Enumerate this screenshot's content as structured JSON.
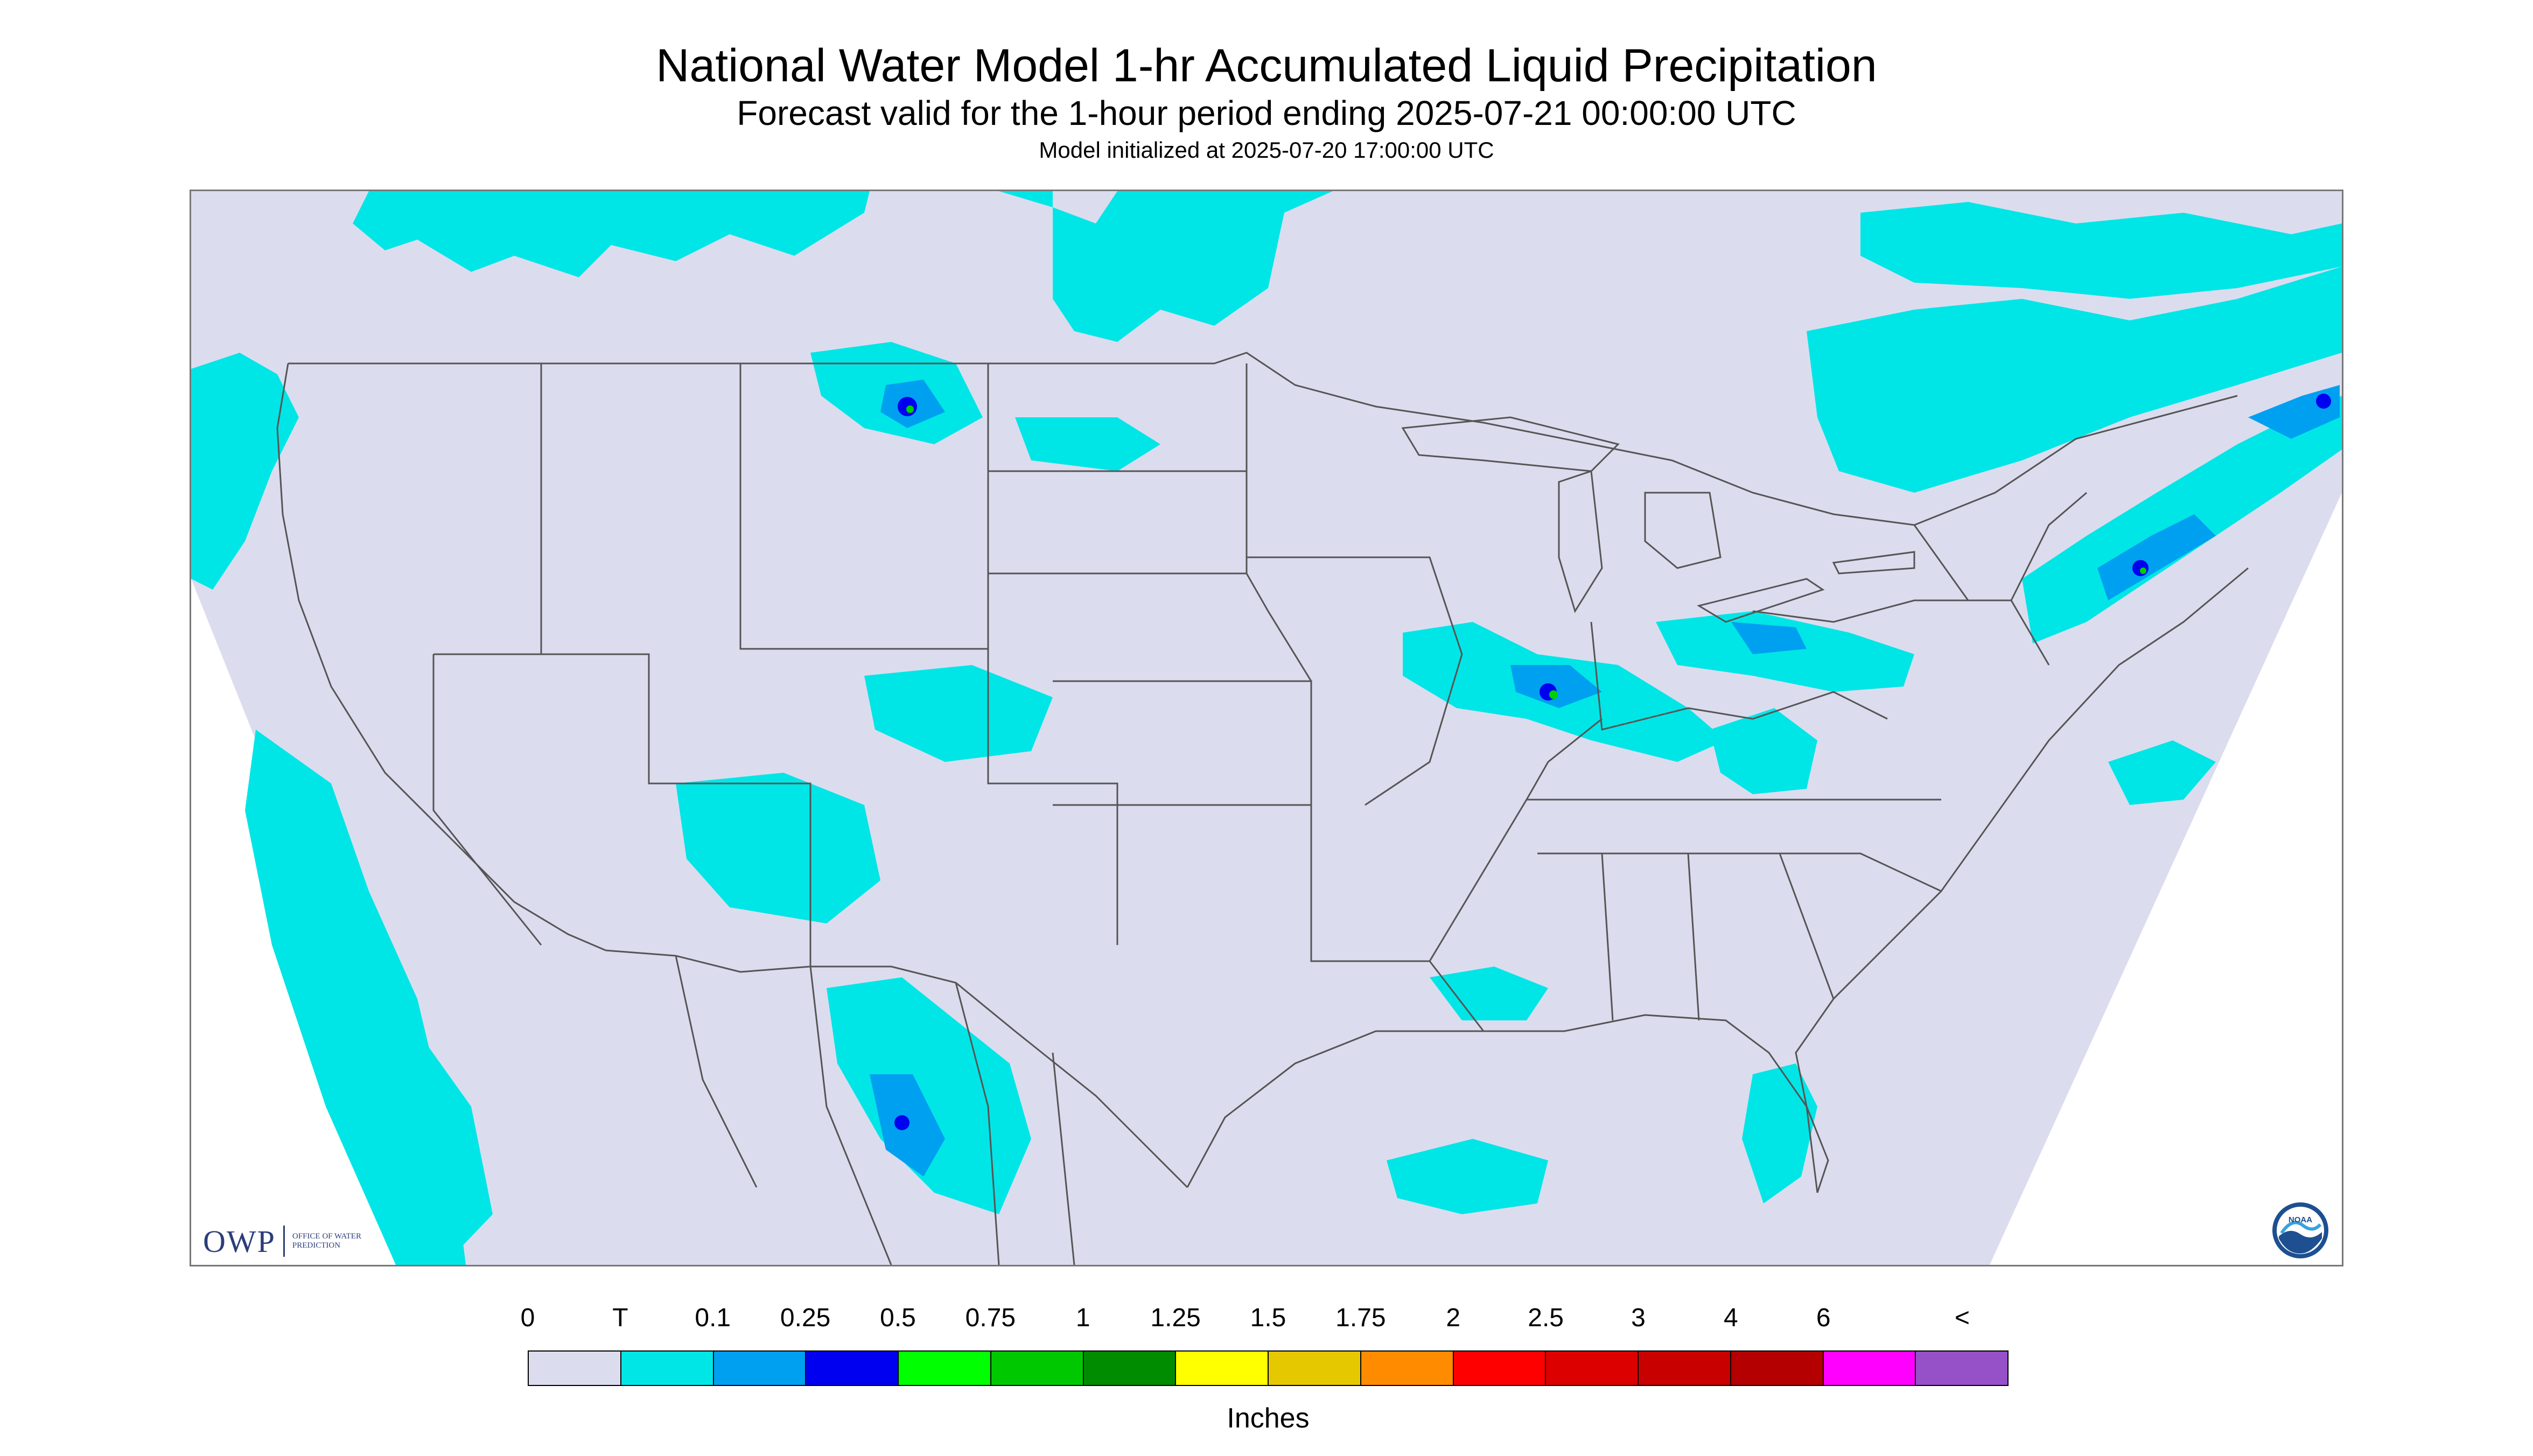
{
  "header": {
    "title": "National Water Model 1-hr Accumulated Liquid Precipitation",
    "subtitle": "Forecast valid for the 1-hour period ending 2025-07-21 00:00:00 UTC",
    "init": "Model initialized at 2025-07-20 17:00:00 UTC"
  },
  "map": {
    "background_color": "#dcdcef",
    "outside_color": "#ffffff",
    "boundary_color": "#555555",
    "precip_light_color": "#00e6e6",
    "precip_medium_color": "#00a0f0",
    "precip_heavy_color": "#0000f0",
    "precip_green_color": "#00d000"
  },
  "logos": {
    "owp_mark": "OWP",
    "owp_text": "Office of Water Prediction",
    "noaa_text": "NOAA"
  },
  "legend": {
    "labels": [
      "0",
      "T",
      "0.1",
      "0.25",
      "0.5",
      "0.75",
      "1",
      "1.25",
      "1.5",
      "1.75",
      "2",
      "2.5",
      "3",
      "4",
      "6",
      "<"
    ],
    "colors": [
      "#dcdcef",
      "#00e6e6",
      "#00a0f0",
      "#0000f0",
      "#00ff00",
      "#00c800",
      "#008c00",
      "#ffff00",
      "#e6c800",
      "#ff8c00",
      "#ff0000",
      "#dc0000",
      "#c80000",
      "#b40000",
      "#ff00ff",
      "#9650c8"
    ],
    "units": "Inches"
  }
}
